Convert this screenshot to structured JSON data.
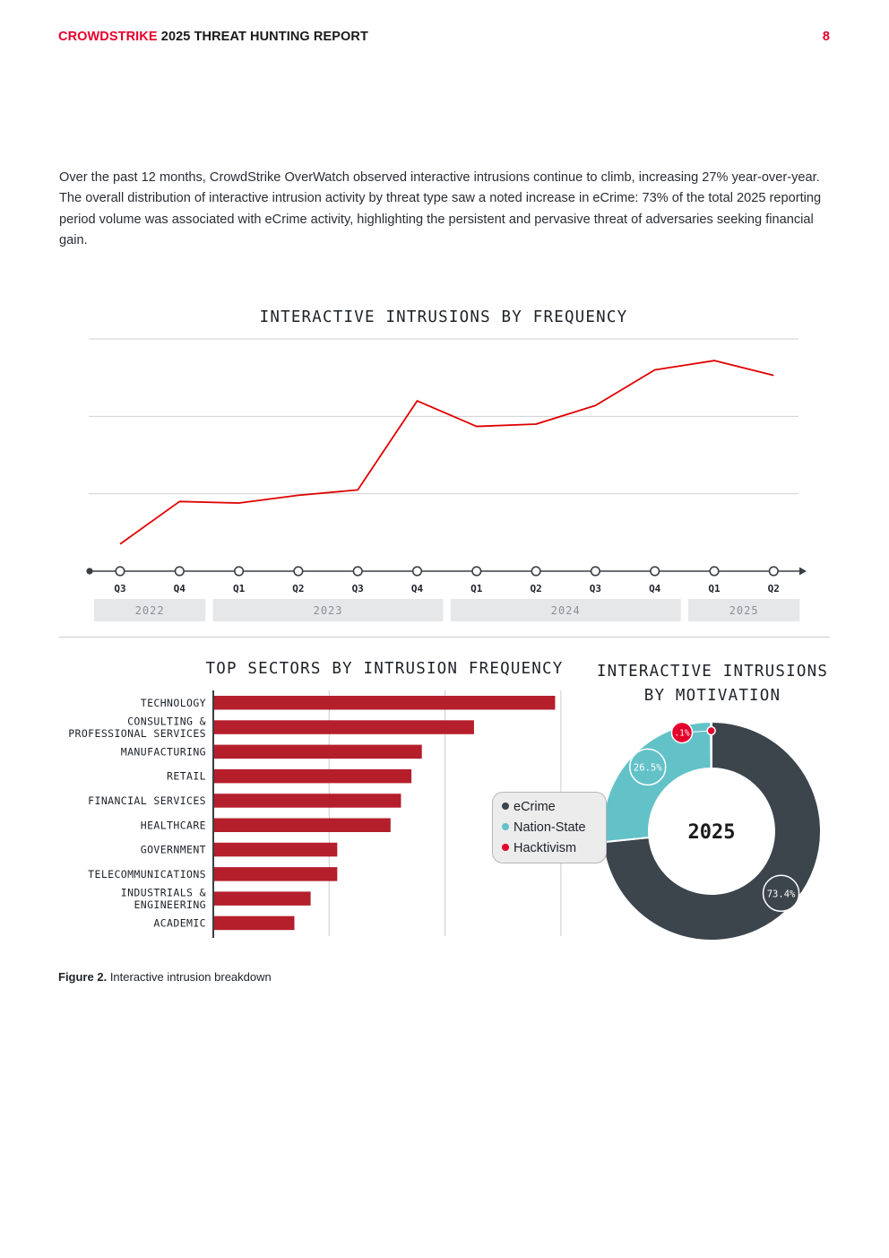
{
  "header": {
    "brand": "CROWDSTRIKE",
    "title": "2025 THREAT HUNTING REPORT",
    "page_number": "8"
  },
  "intro_text": "Over the past 12 months, CrowdStrike OverWatch observed interactive intrusions continue to climb, increasing 27% year-over-year. The overall distribution of interactive intrusion activity by threat type saw a noted increase in eCrime: 73% of the total 2025 reporting period volume was associated with eCrime activity, highlighting the persistent and pervasive threat of adversaries seeking financial gain.",
  "caption": {
    "label": "Figure 2.",
    "text": "Interactive intrusion breakdown"
  },
  "colors": {
    "brand_red": "#e4002b",
    "line_red": "#e00000",
    "bar_red": "#b51f2c",
    "ecrime": "#3c444c",
    "nation_state": "#62c2c8",
    "hacktivism": "#e4002b"
  },
  "chart_data": [
    {
      "type": "line",
      "title": "INTERACTIVE INTRUSIONS BY FREQUENCY",
      "x": [
        "Q3",
        "Q4",
        "Q1",
        "Q2",
        "Q3",
        "Q4",
        "Q1",
        "Q2",
        "Q3",
        "Q4",
        "Q1",
        "Q2"
      ],
      "years": [
        {
          "label": "2022",
          "span": 2
        },
        {
          "label": "2023",
          "span": 4
        },
        {
          "label": "2024",
          "span": 4
        },
        {
          "label": "2025",
          "span": 2
        }
      ],
      "series": [
        {
          "values": [
            0.35,
            0.9,
            0.88,
            0.98,
            1.05,
            2.2,
            1.87,
            1.9,
            2.14,
            2.6,
            2.72,
            2.53
          ]
        }
      ],
      "ylim": [
        0,
        3
      ],
      "grid": true,
      "ytick_labels_shown": false
    },
    {
      "type": "bar",
      "orientation": "horizontal",
      "title": "TOP SECTORS BY INTRUSION FREQUENCY",
      "categories": [
        [
          "TECHNOLOGY"
        ],
        [
          "CONSULTING &",
          "PROFESSIONAL SERVICES"
        ],
        [
          "MANUFACTURING"
        ],
        [
          "RETAIL"
        ],
        [
          "FINANCIAL SERVICES"
        ],
        [
          "HEALTHCARE"
        ],
        [
          "GOVERNMENT"
        ],
        [
          "TELECOMMUNICATIONS"
        ],
        [
          "INDUSTRIALS &",
          "ENGINEERING"
        ],
        [
          "ACADEMIC"
        ]
      ],
      "values": [
        2.95,
        2.25,
        1.8,
        1.71,
        1.62,
        1.53,
        1.07,
        1.07,
        0.84,
        0.7
      ],
      "xlim": [
        0,
        3
      ],
      "grid": true,
      "xtick_labels_shown": false
    },
    {
      "type": "pie",
      "style": "donut",
      "title": [
        "INTERACTIVE INTRUSIONS",
        "BY MOTIVATION"
      ],
      "center_label": "2025",
      "slices": [
        {
          "label": "eCrime",
          "value": 73.4,
          "display": "73.4%",
          "color": "#3c444c"
        },
        {
          "label": "Nation-State",
          "value": 26.5,
          "display": "26.5%",
          "color": "#62c2c8"
        },
        {
          "label": "Hacktivism",
          "value": 0.1,
          "display": ".1%",
          "color": "#e4002b"
        }
      ],
      "legend": [
        "eCrime",
        "Nation-State",
        "Hacktivism"
      ],
      "legend_position": "left"
    }
  ]
}
